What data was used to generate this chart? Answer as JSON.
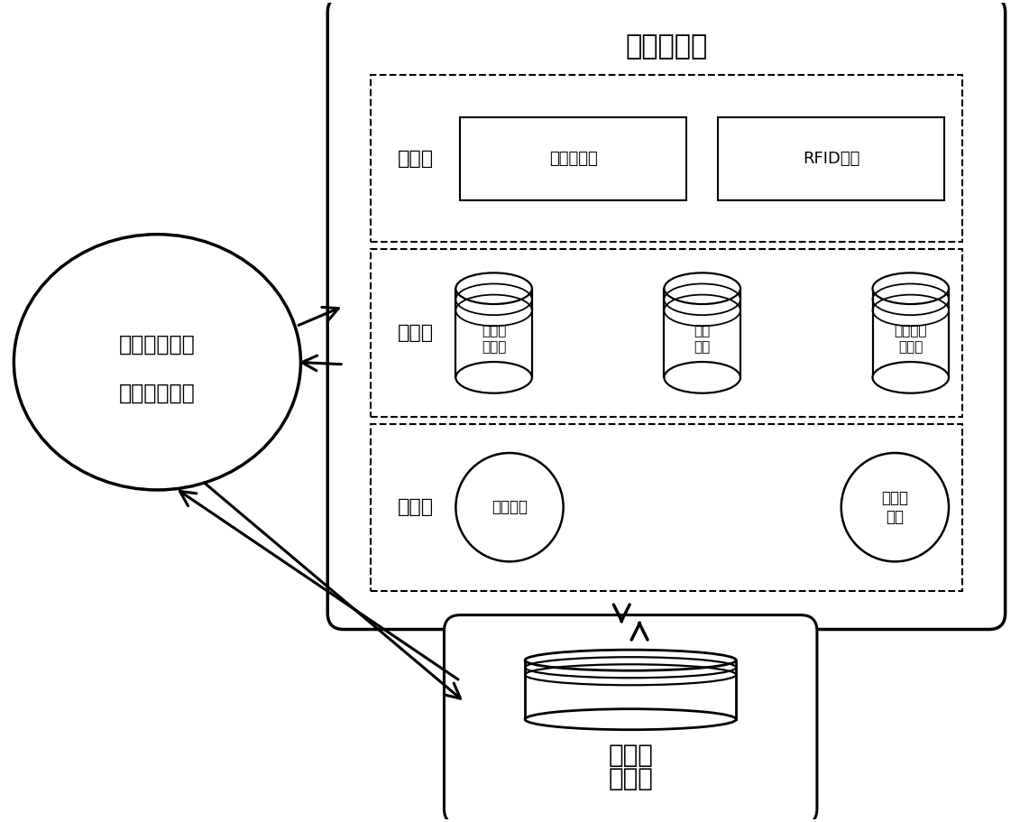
{
  "title": "区块链平台",
  "ellipse_label_line1": "设备制造企业",
  "ellipse_label_line2": "设备运输企业",
  "db_label_line1": "关系型",
  "db_label_line2": "数据库",
  "layer1_name": "感知层",
  "layer2_name": "数据层",
  "layer3_name": "表示层",
  "layer1_items": [
    "状态检测器",
    "RFID芯片"
  ],
  "layer2_items": [
    "节点身\n份认证",
    "智能\n合约",
    "分布式账\n本管理"
  ],
  "layer3_items": [
    "用户管理",
    "数据可\n视化"
  ],
  "bg_color": "#ffffff",
  "text_color": "#000000",
  "font_size_title": 22,
  "font_size_layer": 16,
  "font_size_item": 13,
  "font_size_db": 20,
  "font_size_ellipse": 17
}
